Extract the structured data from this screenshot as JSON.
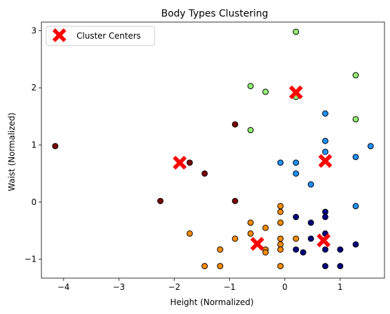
{
  "chart_data": {
    "type": "scatter",
    "title": "Body Types Clustering",
    "xlabel": "Height (Normalized)",
    "ylabel": "Waist (Normalized)",
    "xlim": [
      -4.4,
      1.8
    ],
    "ylim": [
      -1.33,
      3.15
    ],
    "xticks": [
      -4,
      -3,
      -2,
      -1,
      0,
      1
    ],
    "yticks": [
      -1,
      0,
      1,
      2,
      3
    ],
    "grid": false,
    "legend": {
      "placement": "top-left",
      "entries": [
        "Cluster Centers"
      ]
    },
    "colors": {
      "c0": "#7a0000",
      "c1": "#ff8c00",
      "c2": "#000080",
      "c3": "#1e90ff",
      "c4": "#90ee70",
      "center": "#ff0000",
      "edge": "#000000"
    },
    "clusters": [
      {
        "color_key": "c0",
        "points": [
          [
            -4.15,
            0.98
          ],
          [
            -2.25,
            0.02
          ],
          [
            -1.72,
            0.69
          ],
          [
            -1.45,
            0.5
          ],
          [
            -0.9,
            1.36
          ],
          [
            -0.9,
            0.02
          ]
        ]
      },
      {
        "color_key": "c1",
        "points": [
          [
            -1.72,
            -0.55
          ],
          [
            -1.45,
            -1.12
          ],
          [
            -1.17,
            -0.83
          ],
          [
            -1.17,
            -1.12
          ],
          [
            -0.9,
            -0.64
          ],
          [
            -0.62,
            -0.36
          ],
          [
            -0.62,
            -0.55
          ],
          [
            -0.35,
            -0.45
          ],
          [
            -0.35,
            -0.83
          ],
          [
            -0.35,
            -0.88
          ],
          [
            -0.08,
            -0.07
          ],
          [
            -0.08,
            -0.17
          ],
          [
            -0.08,
            -0.36
          ],
          [
            -0.08,
            -0.64
          ],
          [
            -0.08,
            -0.74
          ],
          [
            -0.08,
            -0.83
          ],
          [
            -0.08,
            -1.12
          ],
          [
            0.2,
            -0.64
          ]
        ]
      },
      {
        "color_key": "c2",
        "points": [
          [
            0.2,
            -0.26
          ],
          [
            0.2,
            -0.83
          ],
          [
            0.33,
            -0.88
          ],
          [
            0.47,
            -0.36
          ],
          [
            0.47,
            -0.64
          ],
          [
            0.73,
            -0.17
          ],
          [
            0.73,
            -0.26
          ],
          [
            0.73,
            -0.55
          ],
          [
            0.73,
            -0.83
          ],
          [
            0.73,
            -1.12
          ],
          [
            1.0,
            -0.83
          ],
          [
            1.0,
            -1.12
          ],
          [
            1.28,
            -0.74
          ]
        ]
      },
      {
        "color_key": "c3",
        "points": [
          [
            -0.08,
            0.69
          ],
          [
            0.2,
            0.69
          ],
          [
            0.2,
            0.5
          ],
          [
            0.47,
            0.31
          ],
          [
            0.73,
            1.55
          ],
          [
            0.73,
            1.07
          ],
          [
            0.73,
            0.88
          ],
          [
            1.28,
            0.79
          ],
          [
            1.28,
            -0.07
          ],
          [
            1.55,
            0.98
          ]
        ]
      },
      {
        "color_key": "c4",
        "points": [
          [
            0.2,
            2.98
          ],
          [
            0.2,
            1.84
          ],
          [
            -0.62,
            2.03
          ],
          [
            -0.35,
            1.93
          ],
          [
            -0.62,
            1.26
          ],
          [
            1.28,
            2.22
          ],
          [
            1.28,
            1.45
          ]
        ]
      }
    ],
    "centers": [
      [
        -1.9,
        0.69
      ],
      [
        0.2,
        1.92
      ],
      [
        0.73,
        0.72
      ],
      [
        -0.5,
        -0.73
      ],
      [
        0.7,
        -0.67
      ]
    ]
  }
}
